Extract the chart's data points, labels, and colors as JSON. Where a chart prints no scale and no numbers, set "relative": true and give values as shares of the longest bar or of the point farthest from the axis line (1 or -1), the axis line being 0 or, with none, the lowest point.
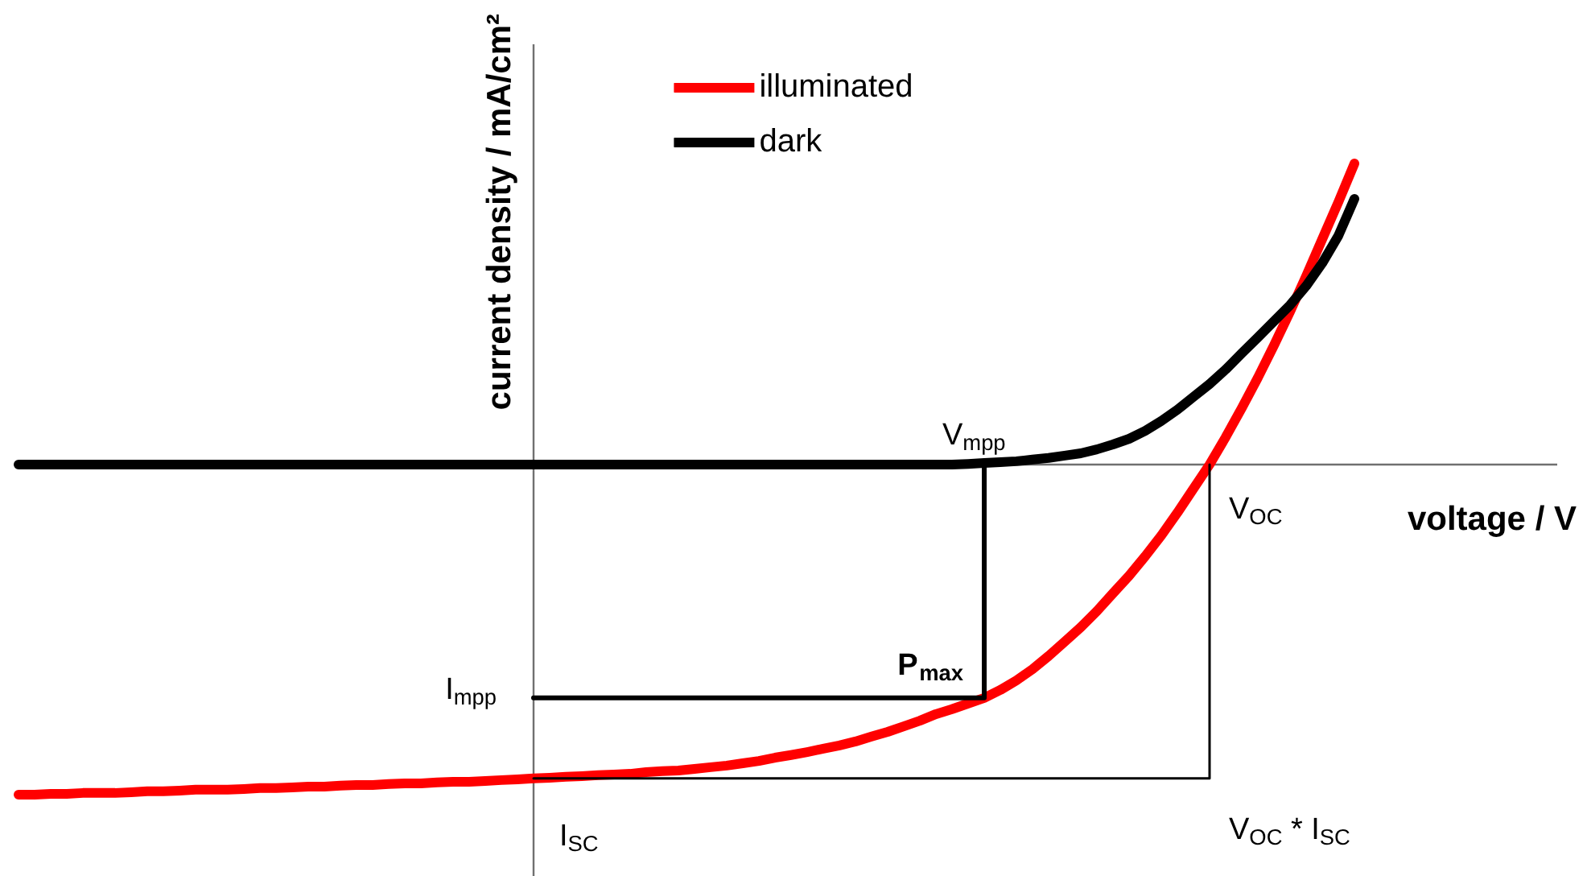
{
  "chart_data": {
    "type": "line",
    "relative": true,
    "xlabel": "voltage / V",
    "ylabel": "current density / mA/cm²",
    "legend": "top",
    "annotations": [
      "V$_{mpp}$",
      "V$_{OC}$",
      "I$_{mpp}$",
      "I$_{SC}$",
      "P$_{max}$",
      "V$_{OC}$ * I$_{SC}$"
    ],
    "categories": [
      null,
      null,
      null,
      null,
      null,
      null,
      null,
      null,
      null,
      null,
      null,
      null,
      null,
      null,
      null,
      null,
      null,
      null,
      null,
      null,
      null,
      null,
      null,
      null,
      null,
      null,
      null,
      null,
      null,
      null,
      null,
      null,
      null,
      null,
      null,
      null,
      null,
      null,
      null,
      null,
      null,
      null,
      null,
      null,
      null,
      null,
      null,
      null,
      null,
      null,
      null,
      null,
      null,
      null,
      null,
      null,
      null,
      null,
      null,
      null,
      null,
      null,
      null,
      null,
      null,
      null,
      null,
      null,
      null,
      null,
      null,
      null,
      null,
      null,
      null,
      null,
      null,
      null,
      null,
      null,
      null,
      null,
      null,
      null
    ],
    "series": [
      {
        "name": "illuminated",
        "color": "#ff0000",
        "values": [
          -1.0,
          -1.0,
          -0.998,
          -0.998,
          -0.995,
          -0.995,
          -0.995,
          -0.993,
          -0.99,
          -0.99,
          -0.988,
          -0.985,
          -0.985,
          -0.985,
          -0.983,
          -0.98,
          -0.98,
          -0.978,
          -0.976,
          -0.976,
          -0.973,
          -0.971,
          -0.971,
          -0.968,
          -0.966,
          -0.966,
          -0.963,
          -0.961,
          -0.961,
          -0.959,
          -0.956,
          -0.954,
          -0.951,
          -0.949,
          -0.946,
          -0.944,
          -0.941,
          -0.939,
          -0.937,
          -0.932,
          -0.929,
          -0.927,
          -0.922,
          -0.917,
          -0.912,
          -0.905,
          -0.898,
          -0.888,
          -0.88,
          -0.871,
          -0.861,
          -0.851,
          -0.839,
          -0.824,
          -0.81,
          -0.793,
          -0.776,
          -0.756,
          -0.741,
          -0.724,
          -0.707,
          -0.683,
          -0.654,
          -0.62,
          -0.58,
          -0.537,
          -0.493,
          -0.444,
          -0.39,
          -0.337,
          -0.278,
          -0.215,
          -0.146,
          -0.073,
          0.0,
          0.083,
          0.171,
          0.263,
          0.361,
          0.463,
          0.571,
          0.683,
          0.795,
          0.912
        ]
      },
      {
        "name": "dark",
        "color": "#000000",
        "values": [
          0,
          0,
          0,
          0,
          0,
          0,
          0,
          0,
          0,
          0,
          0,
          0,
          0,
          0,
          0,
          0,
          0,
          0,
          0,
          0,
          0,
          0,
          0,
          0,
          0,
          0,
          0,
          0,
          0,
          0,
          0,
          0,
          0,
          0,
          0,
          0,
          0,
          0,
          0,
          0,
          0,
          0,
          0,
          0,
          0,
          0,
          0,
          0,
          0,
          0,
          0,
          0,
          0,
          0,
          0,
          0,
          0,
          0,
          0,
          0.002,
          0.005,
          0.007,
          0.01,
          0.015,
          0.02,
          0.027,
          0.034,
          0.046,
          0.061,
          0.078,
          0.102,
          0.132,
          0.166,
          0.205,
          0.244,
          0.288,
          0.337,
          0.385,
          0.434,
          0.483,
          0.541,
          0.61,
          0.693,
          0.805
        ]
      },
      {
        "type": "step",
        "color": "#000000",
        "values": [
          null,
          null,
          null,
          null,
          null,
          null,
          null,
          null,
          null,
          null,
          null,
          null,
          null,
          null,
          null,
          null,
          null,
          null,
          null,
          null,
          null,
          null,
          null,
          null,
          null,
          null,
          null,
          null,
          null,
          null,
          null,
          null,
          -0.707,
          -0.707,
          -0.707,
          -0.707,
          -0.707,
          -0.707,
          -0.707,
          -0.707,
          -0.707,
          -0.707,
          -0.707,
          -0.707,
          -0.707,
          -0.707,
          -0.707,
          -0.707,
          -0.707,
          -0.707,
          -0.707,
          -0.707,
          -0.707,
          -0.707,
          -0.707,
          -0.707,
          -0.707,
          -0.707,
          -0.707,
          -0.707,
          0,
          null,
          null,
          null,
          null,
          null,
          null,
          null,
          null,
          null,
          null,
          null,
          null,
          null,
          null,
          null,
          null,
          null,
          null,
          null,
          null,
          null,
          null,
          null
        ]
      },
      {
        "type": "step",
        "color": "#000000",
        "values": [
          null,
          null,
          null,
          null,
          null,
          null,
          null,
          null,
          null,
          null,
          null,
          null,
          null,
          null,
          null,
          null,
          null,
          null,
          null,
          null,
          null,
          null,
          null,
          null,
          null,
          null,
          null,
          null,
          null,
          null,
          null,
          null,
          -0.951,
          -0.951,
          -0.951,
          -0.951,
          -0.951,
          -0.951,
          -0.951,
          -0.951,
          -0.951,
          -0.951,
          -0.951,
          -0.951,
          -0.951,
          -0.951,
          -0.951,
          -0.951,
          -0.951,
          -0.951,
          -0.951,
          -0.951,
          -0.951,
          -0.951,
          -0.951,
          -0.951,
          -0.951,
          -0.951,
          -0.951,
          -0.951,
          -0.951,
          -0.951,
          -0.951,
          -0.951,
          -0.951,
          -0.951,
          -0.951,
          -0.951,
          -0.951,
          -0.951,
          -0.951,
          -0.951,
          -0.951,
          -0.951,
          0,
          null,
          null,
          null,
          null,
          null,
          null,
          null,
          null,
          null
        ]
      }
    ]
  }
}
